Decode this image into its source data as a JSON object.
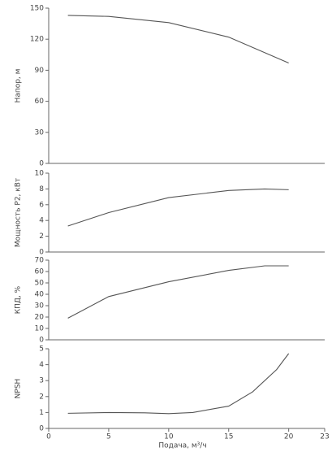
{
  "chart_data": [
    {
      "type": "line",
      "ylabel": "Напор, м",
      "color": "#555555",
      "x": [
        1.6,
        5,
        10,
        15,
        20
      ],
      "values": [
        143,
        142,
        136,
        122,
        97
      ],
      "xlim": [
        0,
        23
      ],
      "ylim": [
        0,
        150
      ],
      "yticks": [
        0,
        30,
        60,
        90,
        120,
        150
      ]
    },
    {
      "type": "line",
      "ylabel": "Мощность P2, кВт",
      "color": "#555555",
      "x": [
        1.6,
        5,
        10,
        15,
        18,
        20
      ],
      "values": [
        3.3,
        5,
        6.9,
        7.8,
        8.0,
        7.9
      ],
      "xlim": [
        0,
        23
      ],
      "ylim": [
        0,
        10
      ],
      "yticks": [
        0,
        2,
        4,
        6,
        8,
        10
      ]
    },
    {
      "type": "line",
      "ylabel": "КПД, %",
      "color": "#555555",
      "x": [
        1.6,
        5,
        10,
        15,
        18,
        20
      ],
      "values": [
        19,
        38,
        51,
        61,
        65,
        65
      ],
      "xlim": [
        0,
        23
      ],
      "ylim": [
        0,
        70
      ],
      "yticks": [
        0,
        10,
        20,
        30,
        40,
        50,
        60,
        70
      ]
    },
    {
      "type": "line",
      "ylabel": "NPSH",
      "xlabel": "Подача, м³/ч",
      "color": "#555555",
      "x": [
        1.6,
        5,
        8,
        10,
        12,
        15,
        17,
        19,
        20
      ],
      "values": [
        0.95,
        1.0,
        0.98,
        0.93,
        1.0,
        1.4,
        2.3,
        3.7,
        4.7
      ],
      "xlim": [
        0,
        23
      ],
      "ylim": [
        0,
        5
      ],
      "yticks": [
        0,
        1,
        2,
        3,
        4,
        5
      ],
      "xticks": [
        0,
        5,
        10,
        15,
        20,
        23
      ]
    }
  ]
}
